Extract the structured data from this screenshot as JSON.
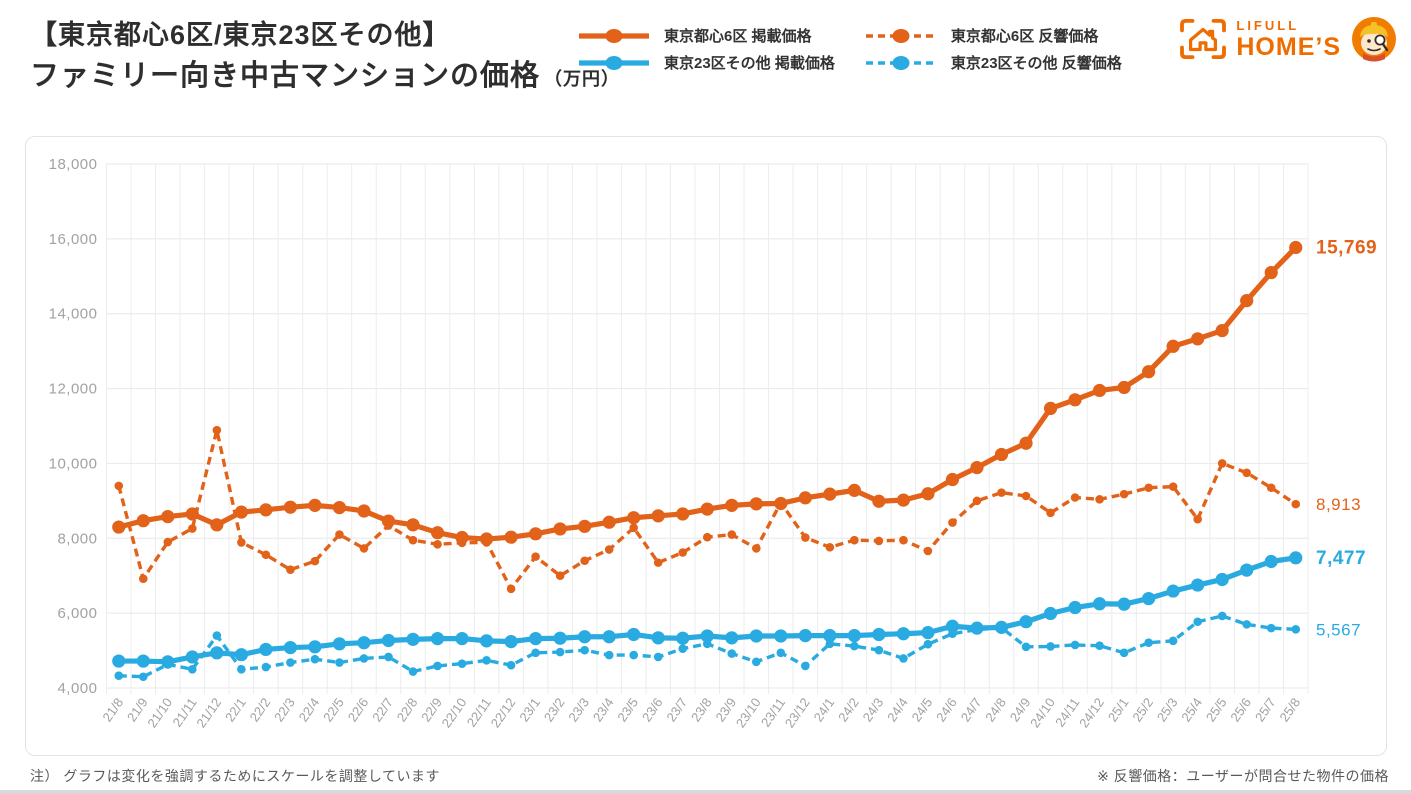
{
  "header": {
    "title_line1": "【東京都心6区/東京23区その他】",
    "title_line2": "ファミリー向き中古マンションの価格",
    "title_unit": "（万円）",
    "logo": {
      "line1": "LIFULL",
      "line2": "HOME’S"
    }
  },
  "colors": {
    "orange": "#e2621a",
    "blue": "#29abe2",
    "logo_orange": "#ef6c00",
    "axis_text": "#a2a2a2",
    "grid": "#ececec",
    "title_text": "#2e2e2e",
    "note_text": "#595959",
    "card_border": "#e3e3e3"
  },
  "footnotes": {
    "left": "注） グラフは変化を強調するためにスケールを調整しています",
    "right": "※ 反響価格：ユーザーが問合せた物件の価格"
  },
  "chart_data": {
    "type": "line",
    "title": "ファミリー向き中古マンションの価格（万円）",
    "ylim": [
      4000,
      18000
    ],
    "ytick_step": 2000,
    "grid": true,
    "legend_position": "top",
    "x": [
      "21/8",
      "21/9",
      "21/10",
      "21/11",
      "21/12",
      "22/1",
      "22/2",
      "22/3",
      "22/4",
      "22/5",
      "22/6",
      "22/7",
      "22/8",
      "22/9",
      "22/10",
      "22/11",
      "22/12",
      "23/1",
      "23/2",
      "23/3",
      "23/4",
      "23/5",
      "23/6",
      "23/7",
      "23/8",
      "23/9",
      "23/10",
      "23/11",
      "23/12",
      "24/1",
      "24/2",
      "24/3",
      "24/4",
      "24/5",
      "24/6",
      "24/7",
      "24/8",
      "24/9",
      "24/10",
      "24/11",
      "24/12",
      "25/1",
      "25/2",
      "25/3",
      "25/4",
      "25/5",
      "25/6",
      "25/7",
      "25/8"
    ],
    "series": [
      {
        "name": "東京都心6区 掲載価格",
        "color": "#e2621a",
        "dashed": false,
        "end_label": "15,769",
        "end_label_bold": true,
        "values": [
          8300,
          8470,
          8580,
          8650,
          8360,
          8700,
          8760,
          8830,
          8880,
          8820,
          8730,
          8460,
          8360,
          8150,
          8020,
          7980,
          8030,
          8120,
          8250,
          8320,
          8430,
          8550,
          8600,
          8650,
          8780,
          8880,
          8920,
          8930,
          9080,
          9180,
          9280,
          8990,
          9020,
          9190,
          9570,
          9890,
          10240,
          10540,
          11470,
          11700,
          11950,
          12030,
          12450,
          13130,
          13330,
          13550,
          14350,
          15100,
          15769
        ]
      },
      {
        "name": "東京23区その他 掲載価格",
        "color": "#29abe2",
        "dashed": false,
        "end_label": "7,477",
        "end_label_bold": true,
        "values": [
          4720,
          4720,
          4700,
          4830,
          4940,
          4890,
          5030,
          5080,
          5100,
          5180,
          5210,
          5270,
          5300,
          5320,
          5320,
          5260,
          5240,
          5320,
          5330,
          5370,
          5370,
          5430,
          5340,
          5330,
          5390,
          5340,
          5390,
          5390,
          5400,
          5400,
          5400,
          5430,
          5450,
          5480,
          5650,
          5600,
          5620,
          5770,
          5990,
          6150,
          6250,
          6240,
          6390,
          6590,
          6750,
          6900,
          7150,
          7380,
          7477
        ]
      },
      {
        "name": "東京都心6区 反響価格",
        "color": "#e2621a",
        "dashed": true,
        "end_label": "8,913",
        "end_label_bold": false,
        "values": [
          9400,
          6920,
          7900,
          8260,
          10890,
          7890,
          7560,
          7160,
          7390,
          8100,
          7730,
          8340,
          7950,
          7840,
          7880,
          7890,
          6650,
          7510,
          7000,
          7400,
          7700,
          8280,
          7350,
          7620,
          8030,
          8100,
          7730,
          8950,
          8020,
          7760,
          7950,
          7930,
          7950,
          7660,
          8420,
          9000,
          9220,
          9130,
          8680,
          9090,
          9040,
          9180,
          9350,
          9380,
          8510,
          10000,
          9750,
          9350,
          8913
        ]
      },
      {
        "name": "東京23区その他 反響価格",
        "color": "#29abe2",
        "dashed": true,
        "end_label": "5,567",
        "end_label_bold": false,
        "values": [
          4330,
          4300,
          4630,
          4500,
          5400,
          4500,
          4560,
          4680,
          4770,
          4680,
          4790,
          4830,
          4440,
          4590,
          4650,
          4740,
          4610,
          4940,
          4960,
          5010,
          4880,
          4880,
          4830,
          5050,
          5180,
          4920,
          4700,
          4940,
          4590,
          5180,
          5120,
          5010,
          4790,
          5170,
          5450,
          5560,
          5610,
          5100,
          5110,
          5150,
          5130,
          4940,
          5210,
          5260,
          5770,
          5925,
          5700,
          5600,
          5567
        ]
      }
    ]
  },
  "legend": {
    "order": [
      0,
      1,
      2,
      3
    ]
  }
}
